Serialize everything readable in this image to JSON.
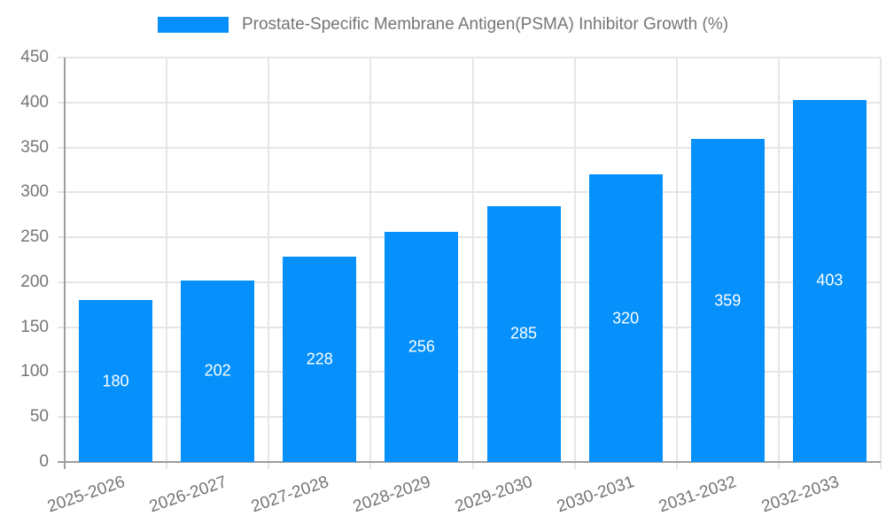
{
  "chart_data": {
    "type": "bar",
    "title": "Prostate-Specific Membrane Antigen(PSMA) Inhibitor Growth (%)",
    "categories": [
      "2025-2026",
      "2026-2027",
      "2027-2028",
      "2028-2029",
      "2029-2030",
      "2030-2031",
      "2031-2032",
      "2032-2033"
    ],
    "values": [
      180,
      202,
      228,
      256,
      285,
      320,
      359,
      403
    ],
    "xlabel": "",
    "ylabel": "",
    "ylim": [
      0,
      450
    ],
    "yticks": [
      0,
      50,
      100,
      150,
      200,
      250,
      300,
      350,
      400,
      450
    ],
    "grid": "horizontal and vertical",
    "legend_position": "top-center",
    "value_labels": "inside bars, centered, white",
    "colors": {
      "bar": "#0590fb",
      "axis_line": "#9e9e9e",
      "gridline": "#e6e6e6",
      "axis_text": "#757575",
      "value_label": "#ffffff",
      "background": "#ffffff"
    }
  }
}
